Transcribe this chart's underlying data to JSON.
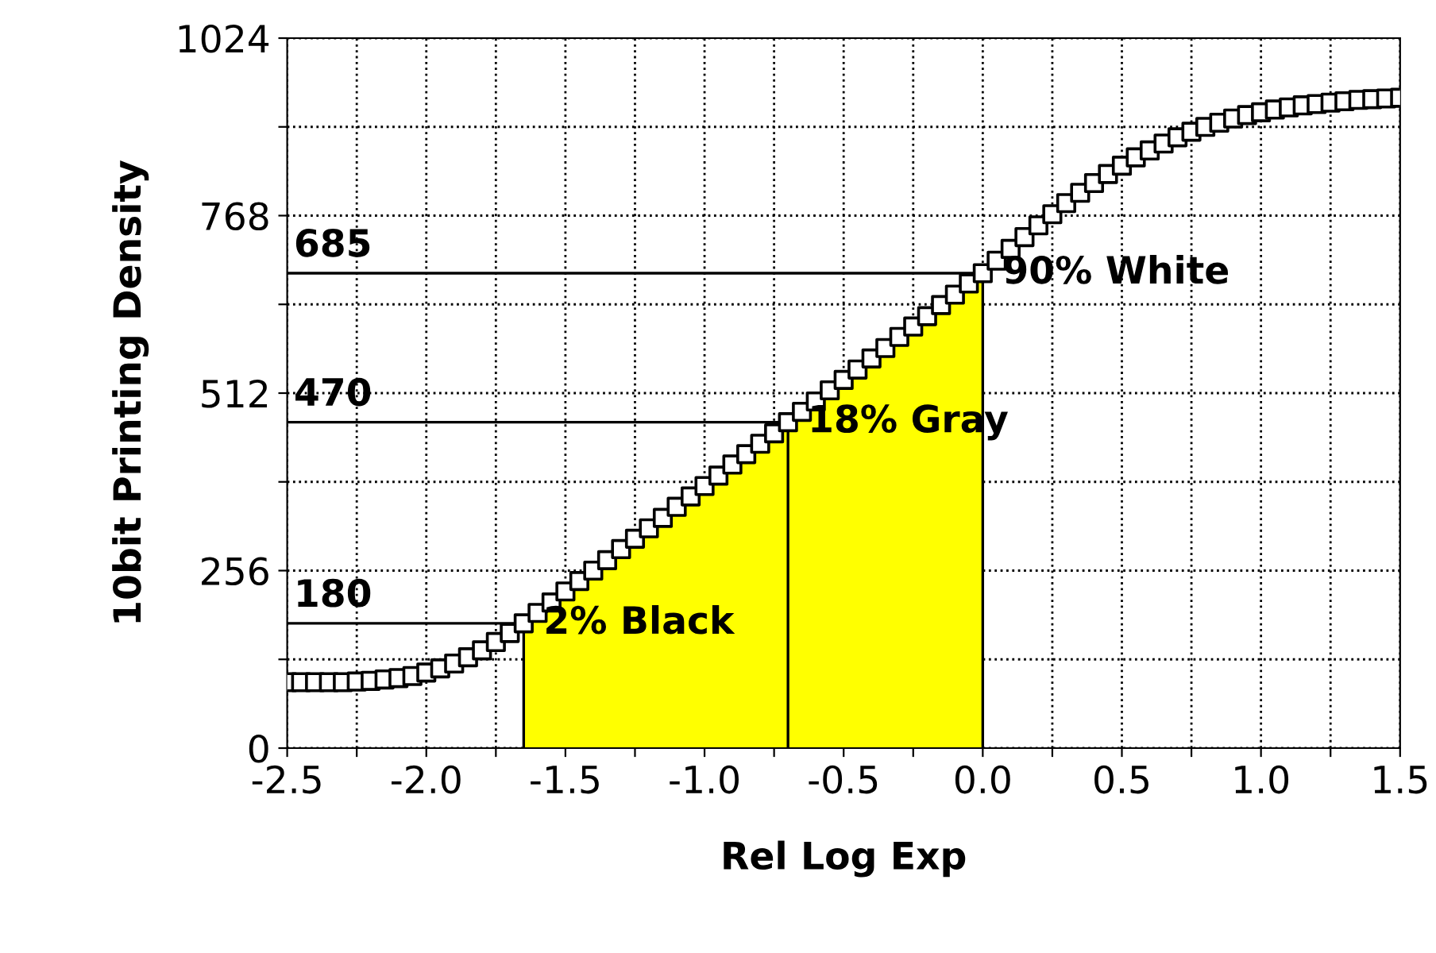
{
  "chart_data": {
    "type": "scatter",
    "xlabel": "Rel Log Exp",
    "ylabel": "10bit Printing Density",
    "xlim": [
      -2.5,
      1.5
    ],
    "ylim": [
      0,
      1024
    ],
    "xticks": [
      {
        "value": -2.5,
        "label": "-2.5"
      },
      {
        "value": -2.25,
        "label": null
      },
      {
        "value": -2,
        "label": "-2.0"
      },
      {
        "value": -1.75,
        "label": null
      },
      {
        "value": -1.5,
        "label": "-1.5"
      },
      {
        "value": -1.25,
        "label": null
      },
      {
        "value": -1,
        "label": "-1.0"
      },
      {
        "value": -0.75,
        "label": null
      },
      {
        "value": -0.5,
        "label": "-0.5"
      },
      {
        "value": -0.25,
        "label": null
      },
      {
        "value": 0,
        "label": "0.0"
      },
      {
        "value": 0.25,
        "label": null
      },
      {
        "value": 0.5,
        "label": "0.5"
      },
      {
        "value": 0.75,
        "label": null
      },
      {
        "value": 1,
        "label": "1.0"
      },
      {
        "value": 1.25,
        "label": null
      },
      {
        "value": 1.5,
        "label": "1.5"
      }
    ],
    "yticks": [
      0,
      {
        "value": 128,
        "label": null
      },
      256,
      {
        "value": 384,
        "label": null
      },
      512,
      {
        "value": 640,
        "label": null
      },
      768,
      {
        "value": 896,
        "label": null
      },
      1024
    ],
    "grid": true,
    "series": [
      {
        "type": "area",
        "color": "#ffff00",
        "x": [
          -1.65,
          -1.6,
          -1.55,
          -1.5,
          -1.45,
          -1.4,
          -1.35,
          -1.3,
          -1.25,
          -1.2,
          -1.15,
          -1.1,
          -1.05,
          -1.0,
          -0.95,
          -0.9,
          -0.85,
          -0.8,
          -0.75,
          -0.7,
          -0.65,
          -0.6,
          -0.55,
          -0.5,
          -0.45,
          -0.4,
          -0.35,
          -0.3,
          -0.25,
          -0.2,
          -0.15,
          -0.1,
          -0.05,
          0
        ],
        "values": [
          180,
          195,
          210,
          226,
          241,
          256,
          271,
          287,
          302,
          317,
          332,
          348,
          363,
          378,
          393,
          409,
          424,
          439,
          454,
          470,
          485,
          500,
          516,
          531,
          546,
          562,
          577,
          593,
          608,
          623,
          639,
          654,
          670,
          685
        ]
      },
      {
        "type": "line",
        "color": "#000000",
        "marker": "none",
        "x": [
          -2.5,
          -1.65,
          -1.65
        ],
        "values": [
          180,
          180,
          0
        ]
      },
      {
        "type": "line",
        "color": "#000000",
        "marker": "none",
        "x": [
          -2.5,
          -0.7,
          -0.7
        ],
        "values": [
          470,
          470,
          0
        ]
      },
      {
        "type": "line",
        "color": "#000000",
        "marker": "none",
        "x": [
          -2.5,
          0,
          0
        ],
        "values": [
          685,
          685,
          0
        ]
      },
      {
        "color": "#000000",
        "marker": "square",
        "x": [
          -2.5,
          -2.45,
          -2.4,
          -2.35,
          -2.3,
          -2.25,
          -2.2,
          -2.15,
          -2.1,
          -2.05,
          -2.0,
          -1.95,
          -1.9,
          -1.85,
          -1.8,
          -1.75,
          -1.7,
          -1.65,
          -1.6,
          -1.55,
          -1.5,
          -1.45,
          -1.4,
          -1.35,
          -1.3,
          -1.25,
          -1.2,
          -1.15,
          -1.1,
          -1.05,
          -1.0,
          -0.95,
          -0.9,
          -0.85,
          -0.8,
          -0.75,
          -0.7,
          -0.65,
          -0.6,
          -0.55,
          -0.5,
          -0.45,
          -0.4,
          -0.35,
          -0.3,
          -0.25,
          -0.2,
          -0.15,
          -0.1,
          -0.05,
          0,
          0.05,
          0.1,
          0.15,
          0.2,
          0.25,
          0.3,
          0.35,
          0.4,
          0.45,
          0.5,
          0.55,
          0.6,
          0.65,
          0.7,
          0.75,
          0.8,
          0.85,
          0.9,
          0.95,
          1.0,
          1.05,
          1.1,
          1.15,
          1.2,
          1.25,
          1.3,
          1.35,
          1.4,
          1.45,
          1.5
        ],
        "values": [
          95,
          95,
          95,
          95,
          95,
          96,
          97,
          99,
          101,
          104,
          109,
          115,
          122,
          131,
          141,
          153,
          166,
          180,
          195,
          210,
          226,
          241,
          256,
          271,
          287,
          302,
          317,
          332,
          348,
          363,
          378,
          393,
          409,
          424,
          439,
          454,
          470,
          485,
          500,
          516,
          531,
          546,
          562,
          577,
          593,
          608,
          623,
          639,
          654,
          670,
          685,
          703,
          720,
          737,
          754,
          770,
          786,
          801,
          815,
          828,
          840,
          852,
          862,
          872,
          881,
          889,
          896,
          902,
          908,
          913,
          917,
          921,
          924,
          927,
          929,
          931,
          933,
          935,
          936,
          937,
          938
        ]
      }
    ],
    "annotations": [
      {
        "text": "180",
        "x": -2.5,
        "y": 180
      },
      {
        "text": "470",
        "x": -2.5,
        "y": 470
      },
      {
        "text": "685",
        "x": -2.5,
        "y": 685
      },
      {
        "text": "2% Black",
        "x": -1.65,
        "y": 180
      },
      {
        "text": "18% Gray",
        "x": -0.7,
        "y": 470
      },
      {
        "text": "90% White",
        "x": 0,
        "y": 685
      }
    ]
  }
}
